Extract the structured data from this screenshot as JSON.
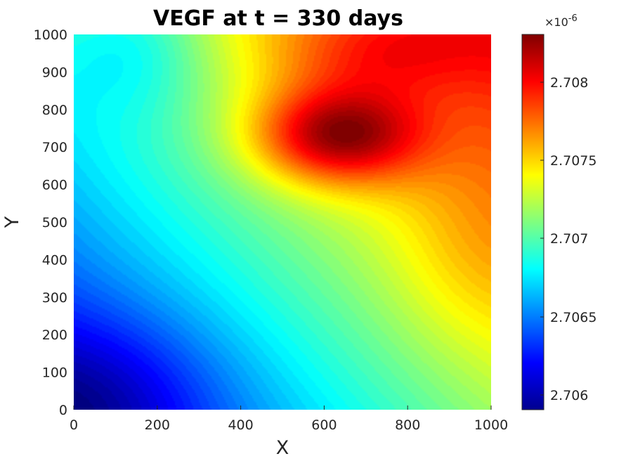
{
  "chart_data": {
    "type": "heatmap",
    "subtype": "filled contour",
    "title": "VEGF at t = 330 days",
    "xlabel": "X",
    "ylabel": "Y",
    "xlim": [
      0,
      1000
    ],
    "ylim": [
      0,
      1000
    ],
    "x_ticks": [
      "0",
      "200",
      "400",
      "600",
      "800",
      "1000"
    ],
    "y_ticks": [
      "0",
      "100",
      "200",
      "300",
      "400",
      "500",
      "600",
      "700",
      "800",
      "900",
      "1000"
    ],
    "colormap": "jet",
    "colorbar": {
      "range": [
        2.70592e-06,
        2.70829e-06
      ],
      "ticks": [
        "2.706",
        "2.7065",
        "2.707",
        "2.7075",
        "2.708"
      ],
      "tick_values": [
        2.706,
        2.7065,
        2.707,
        2.7075,
        2.708
      ],
      "exponent_label": "×10",
      "exponent": "-6"
    },
    "field_features": [
      {
        "description": "maximum",
        "x": 620,
        "y": 730,
        "value": 2.70827e-06
      },
      {
        "description": "minimum",
        "x": 30,
        "y": 20,
        "value": 2.70593e-06
      }
    ],
    "grid": false
  },
  "colors": {
    "jet": [
      "#00008f",
      "#0000ff",
      "#00ffff",
      "#ffff00",
      "#ff0000",
      "#800000"
    ]
  }
}
